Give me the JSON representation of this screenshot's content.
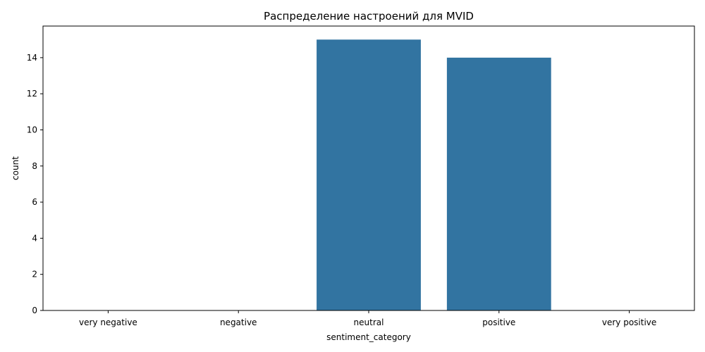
{
  "chart_data": {
    "type": "bar",
    "title": "Распределение настроений для MVID",
    "xlabel": "sentiment_category",
    "ylabel": "count",
    "categories": [
      "very negative",
      "negative",
      "neutral",
      "positive",
      "very positive"
    ],
    "values": [
      0,
      0,
      15,
      14,
      0
    ],
    "ylim": [
      0,
      15.75
    ],
    "yticks": [
      0,
      2,
      4,
      6,
      8,
      10,
      12,
      14
    ],
    "bar_color": "#3274a1",
    "grid": false,
    "legend": "none"
  }
}
